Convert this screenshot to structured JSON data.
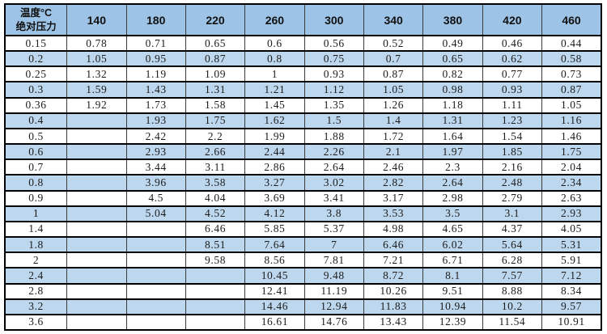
{
  "table": {
    "corner": {
      "line1": "温度°C",
      "line2": "绝对压力"
    },
    "columns": [
      "140",
      "180",
      "220",
      "260",
      "300",
      "340",
      "380",
      "420",
      "460"
    ],
    "rows": [
      {
        "pressure": "0.15",
        "values": [
          "0.78",
          "0.71",
          "0.65",
          "0.6",
          "0.56",
          "0.52",
          "0.49",
          "0.46",
          "0.44"
        ]
      },
      {
        "pressure": "0.2",
        "values": [
          "1.05",
          "0.95",
          "0.87",
          "0.8",
          "0.75",
          "0.7",
          "0.65",
          "0.62",
          "0.58"
        ]
      },
      {
        "pressure": "0.25",
        "values": [
          "1.32",
          "1.19",
          "1.09",
          "1",
          "0.93",
          "0.87",
          "0.82",
          "0.77",
          "0.73"
        ]
      },
      {
        "pressure": "0.3",
        "values": [
          "1.59",
          "1.43",
          "1.31",
          "1.21",
          "1.12",
          "1.05",
          "0.98",
          "0.93",
          "0.87"
        ]
      },
      {
        "pressure": "0.36",
        "values": [
          "1.92",
          "1.73",
          "1.58",
          "1.45",
          "1.35",
          "1.26",
          "1.18",
          "1.11",
          "1.05"
        ]
      },
      {
        "pressure": "0.4",
        "values": [
          "",
          "1.93",
          "1.75",
          "1.62",
          "1.5",
          "1.4",
          "1.31",
          "1.23",
          "1.16"
        ]
      },
      {
        "pressure": "0.5",
        "values": [
          "",
          "2.42",
          "2.2",
          "1.99",
          "1.88",
          "1.72",
          "1.64",
          "1.54",
          "1.46"
        ]
      },
      {
        "pressure": "0.6",
        "values": [
          "",
          "2.93",
          "2.66",
          "2.44",
          "2.26",
          "2.1",
          "1.97",
          "1.85",
          "1.75"
        ]
      },
      {
        "pressure": "0.7",
        "values": [
          "",
          "3.44",
          "3.11",
          "2.86",
          "2.64",
          "2.46",
          "2.3",
          "2.16",
          "2.04"
        ]
      },
      {
        "pressure": "0.8",
        "values": [
          "",
          "3.96",
          "3.58",
          "3.27",
          "3.02",
          "2.82",
          "2.64",
          "2.48",
          "2.34"
        ]
      },
      {
        "pressure": "0.9",
        "values": [
          "",
          "4.5",
          "4.04",
          "3.69",
          "3.41",
          "3.17",
          "2.98",
          "2.79",
          "2.63"
        ]
      },
      {
        "pressure": "1",
        "values": [
          "",
          "5.04",
          "4.52",
          "4.12",
          "3.8",
          "3.53",
          "3.5",
          "3.1",
          "2.93"
        ]
      },
      {
        "pressure": "1.4",
        "values": [
          "",
          "",
          "6.46",
          "5.85",
          "5.37",
          "4.98",
          "4.65",
          "4.37",
          "4.05"
        ]
      },
      {
        "pressure": "1.8",
        "values": [
          "",
          "",
          "8.51",
          "7.64",
          "7",
          "6.46",
          "6.02",
          "5.64",
          "5.31"
        ]
      },
      {
        "pressure": "2",
        "values": [
          "",
          "",
          "9.58",
          "8.56",
          "7.81",
          "7.21",
          "6.71",
          "6.28",
          "5.91"
        ]
      },
      {
        "pressure": "2.4",
        "values": [
          "",
          "",
          "",
          "10.45",
          "9.48",
          "8.72",
          "8.1",
          "7.57",
          "7.12"
        ]
      },
      {
        "pressure": "2.8",
        "values": [
          "",
          "",
          "",
          "12.41",
          "11.19",
          "10.26",
          "9.51",
          "8.88",
          "8.34"
        ]
      },
      {
        "pressure": "3.2",
        "values": [
          "",
          "",
          "",
          "14.46",
          "12.94",
          "11.83",
          "10.94",
          "10.2",
          "9.57"
        ]
      },
      {
        "pressure": "3.6",
        "values": [
          "",
          "",
          "",
          "16.61",
          "14.76",
          "13.43",
          "12.39",
          "11.54",
          "10.91"
        ]
      }
    ]
  },
  "colors": {
    "header_bg": "#9DC3E6",
    "band_bg": "#BDD7EE",
    "row_bg": "#FFFFFF",
    "grid_horizontal": "#000000",
    "grid_vertical": "#3B3B3B",
    "text": "#1C1C1C"
  }
}
